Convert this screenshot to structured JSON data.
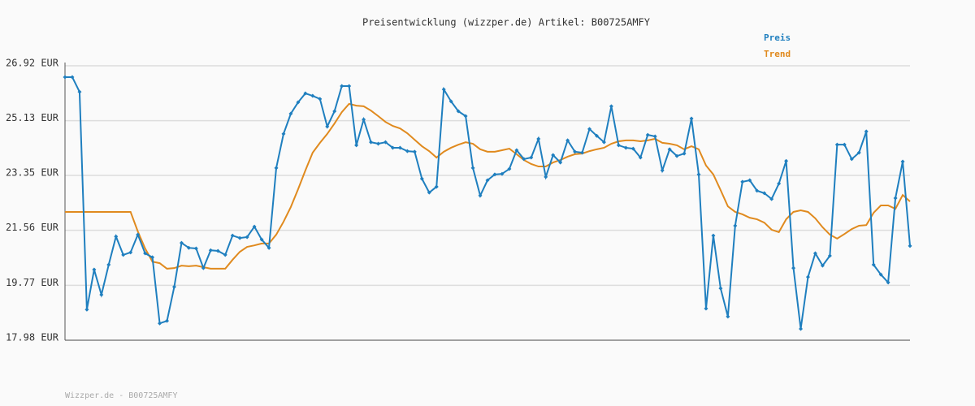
{
  "chart_data": {
    "type": "line",
    "title": "Preisentwicklung (wizzper.de) Artikel: B00725AMFY",
    "categories": [
      null,
      null,
      null,
      null,
      null,
      null,
      null,
      null,
      null,
      null,
      null,
      null,
      null,
      null,
      null,
      null,
      null,
      null,
      null,
      null,
      null,
      null,
      null,
      null,
      null,
      null,
      null,
      null,
      null,
      null,
      null,
      null,
      null,
      null,
      null,
      null,
      null,
      null,
      null,
      null,
      null,
      null,
      null,
      null,
      null,
      null,
      null,
      null,
      null,
      null,
      null,
      null,
      null,
      null,
      null,
      null,
      null,
      null,
      null,
      null,
      null,
      null,
      null,
      null,
      null,
      null,
      null,
      null,
      null,
      null,
      null,
      null,
      null,
      null,
      null,
      null,
      null,
      null,
      null,
      null,
      null,
      null,
      null,
      null,
      null,
      null,
      null,
      null,
      null,
      null,
      null,
      null,
      null,
      null,
      null,
      null,
      null,
      null,
      null,
      null,
      null,
      null,
      null,
      null,
      null,
      null,
      null,
      null,
      null,
      null,
      null,
      null,
      null,
      null,
      null,
      null,
      null
    ],
    "series": [
      {
        "name": "Preis",
        "color": "#1f7fbf",
        "markers": true,
        "values": [
          26.55,
          26.55,
          26.07,
          18.98,
          20.28,
          19.46,
          20.44,
          21.36,
          20.76,
          20.84,
          21.42,
          20.81,
          20.68,
          18.53,
          18.61,
          19.72,
          21.15,
          20.99,
          20.97,
          20.33,
          20.91,
          20.89,
          20.76,
          21.39,
          21.31,
          21.34,
          21.68,
          21.26,
          20.99,
          23.59,
          24.7,
          25.36,
          25.73,
          26.02,
          25.94,
          25.84,
          24.94,
          25.44,
          26.26,
          26.26,
          24.33,
          25.17,
          24.43,
          24.38,
          24.43,
          24.25,
          24.25,
          24.14,
          24.12,
          23.24,
          22.79,
          22.98,
          26.15,
          25.76,
          25.44,
          25.28,
          23.59,
          22.69,
          23.19,
          23.38,
          23.4,
          23.56,
          24.17,
          23.88,
          23.93,
          24.54,
          23.3,
          24.01,
          23.77,
          24.49,
          24.12,
          24.09,
          24.86,
          24.64,
          24.43,
          25.6,
          24.33,
          24.25,
          24.22,
          23.93,
          24.67,
          24.62,
          23.51,
          24.2,
          23.98,
          24.06,
          25.2,
          23.38,
          19.01,
          21.39,
          19.67,
          18.75,
          21.71,
          23.14,
          23.19,
          22.85,
          22.77,
          22.58,
          23.08,
          23.82,
          20.33,
          18.35,
          20.04,
          20.81,
          20.41,
          20.73,
          24.35,
          24.35,
          23.88,
          24.09,
          24.78,
          20.44,
          20.12,
          19.86,
          22.61,
          23.8,
          21.05
        ]
      },
      {
        "name": "Trend",
        "color": "#e08a1e",
        "markers": false,
        "values": [
          22.16,
          22.16,
          22.16,
          22.16,
          22.16,
          22.16,
          22.16,
          22.16,
          22.16,
          22.16,
          21.52,
          20.97,
          20.54,
          20.49,
          20.31,
          20.33,
          20.41,
          20.39,
          20.41,
          20.36,
          20.31,
          20.31,
          20.31,
          20.6,
          20.86,
          21.02,
          21.07,
          21.13,
          21.13,
          21.42,
          21.84,
          22.32,
          22.9,
          23.51,
          24.09,
          24.41,
          24.7,
          25.04,
          25.41,
          25.68,
          25.62,
          25.6,
          25.46,
          25.28,
          25.09,
          24.96,
          24.88,
          24.72,
          24.51,
          24.3,
          24.14,
          23.93,
          24.12,
          24.25,
          24.35,
          24.43,
          24.38,
          24.2,
          24.12,
          24.12,
          24.17,
          24.22,
          24.04,
          23.85,
          23.72,
          23.64,
          23.64,
          23.77,
          23.85,
          23.96,
          24.04,
          24.06,
          24.14,
          24.2,
          24.25,
          24.38,
          24.46,
          24.49,
          24.49,
          24.46,
          24.49,
          24.54,
          24.41,
          24.38,
          24.33,
          24.2,
          24.3,
          24.2,
          23.67,
          23.38,
          22.87,
          22.34,
          22.16,
          22.08,
          21.97,
          21.92,
          21.81,
          21.58,
          21.5,
          21.92,
          22.16,
          22.21,
          22.16,
          21.95,
          21.66,
          21.42,
          21.29,
          21.44,
          21.6,
          21.71,
          21.73,
          22.13,
          22.37,
          22.37,
          22.26,
          22.71,
          22.5
        ]
      }
    ],
    "ylim": [
      17.98,
      26.92
    ],
    "yticks": [
      {
        "value": 17.98,
        "label": "17.98 EUR"
      },
      {
        "value": 19.77,
        "label": "19.77 EUR"
      },
      {
        "value": 21.56,
        "label": "21.56 EUR"
      },
      {
        "value": 23.35,
        "label": "23.35 EUR"
      },
      {
        "value": 25.13,
        "label": "25.13 EUR"
      },
      {
        "value": 26.92,
        "label": "26.92 EUR"
      }
    ],
    "grid": true,
    "legend": "top-right",
    "footer": "Wizzper.de - B00725AMFY"
  }
}
